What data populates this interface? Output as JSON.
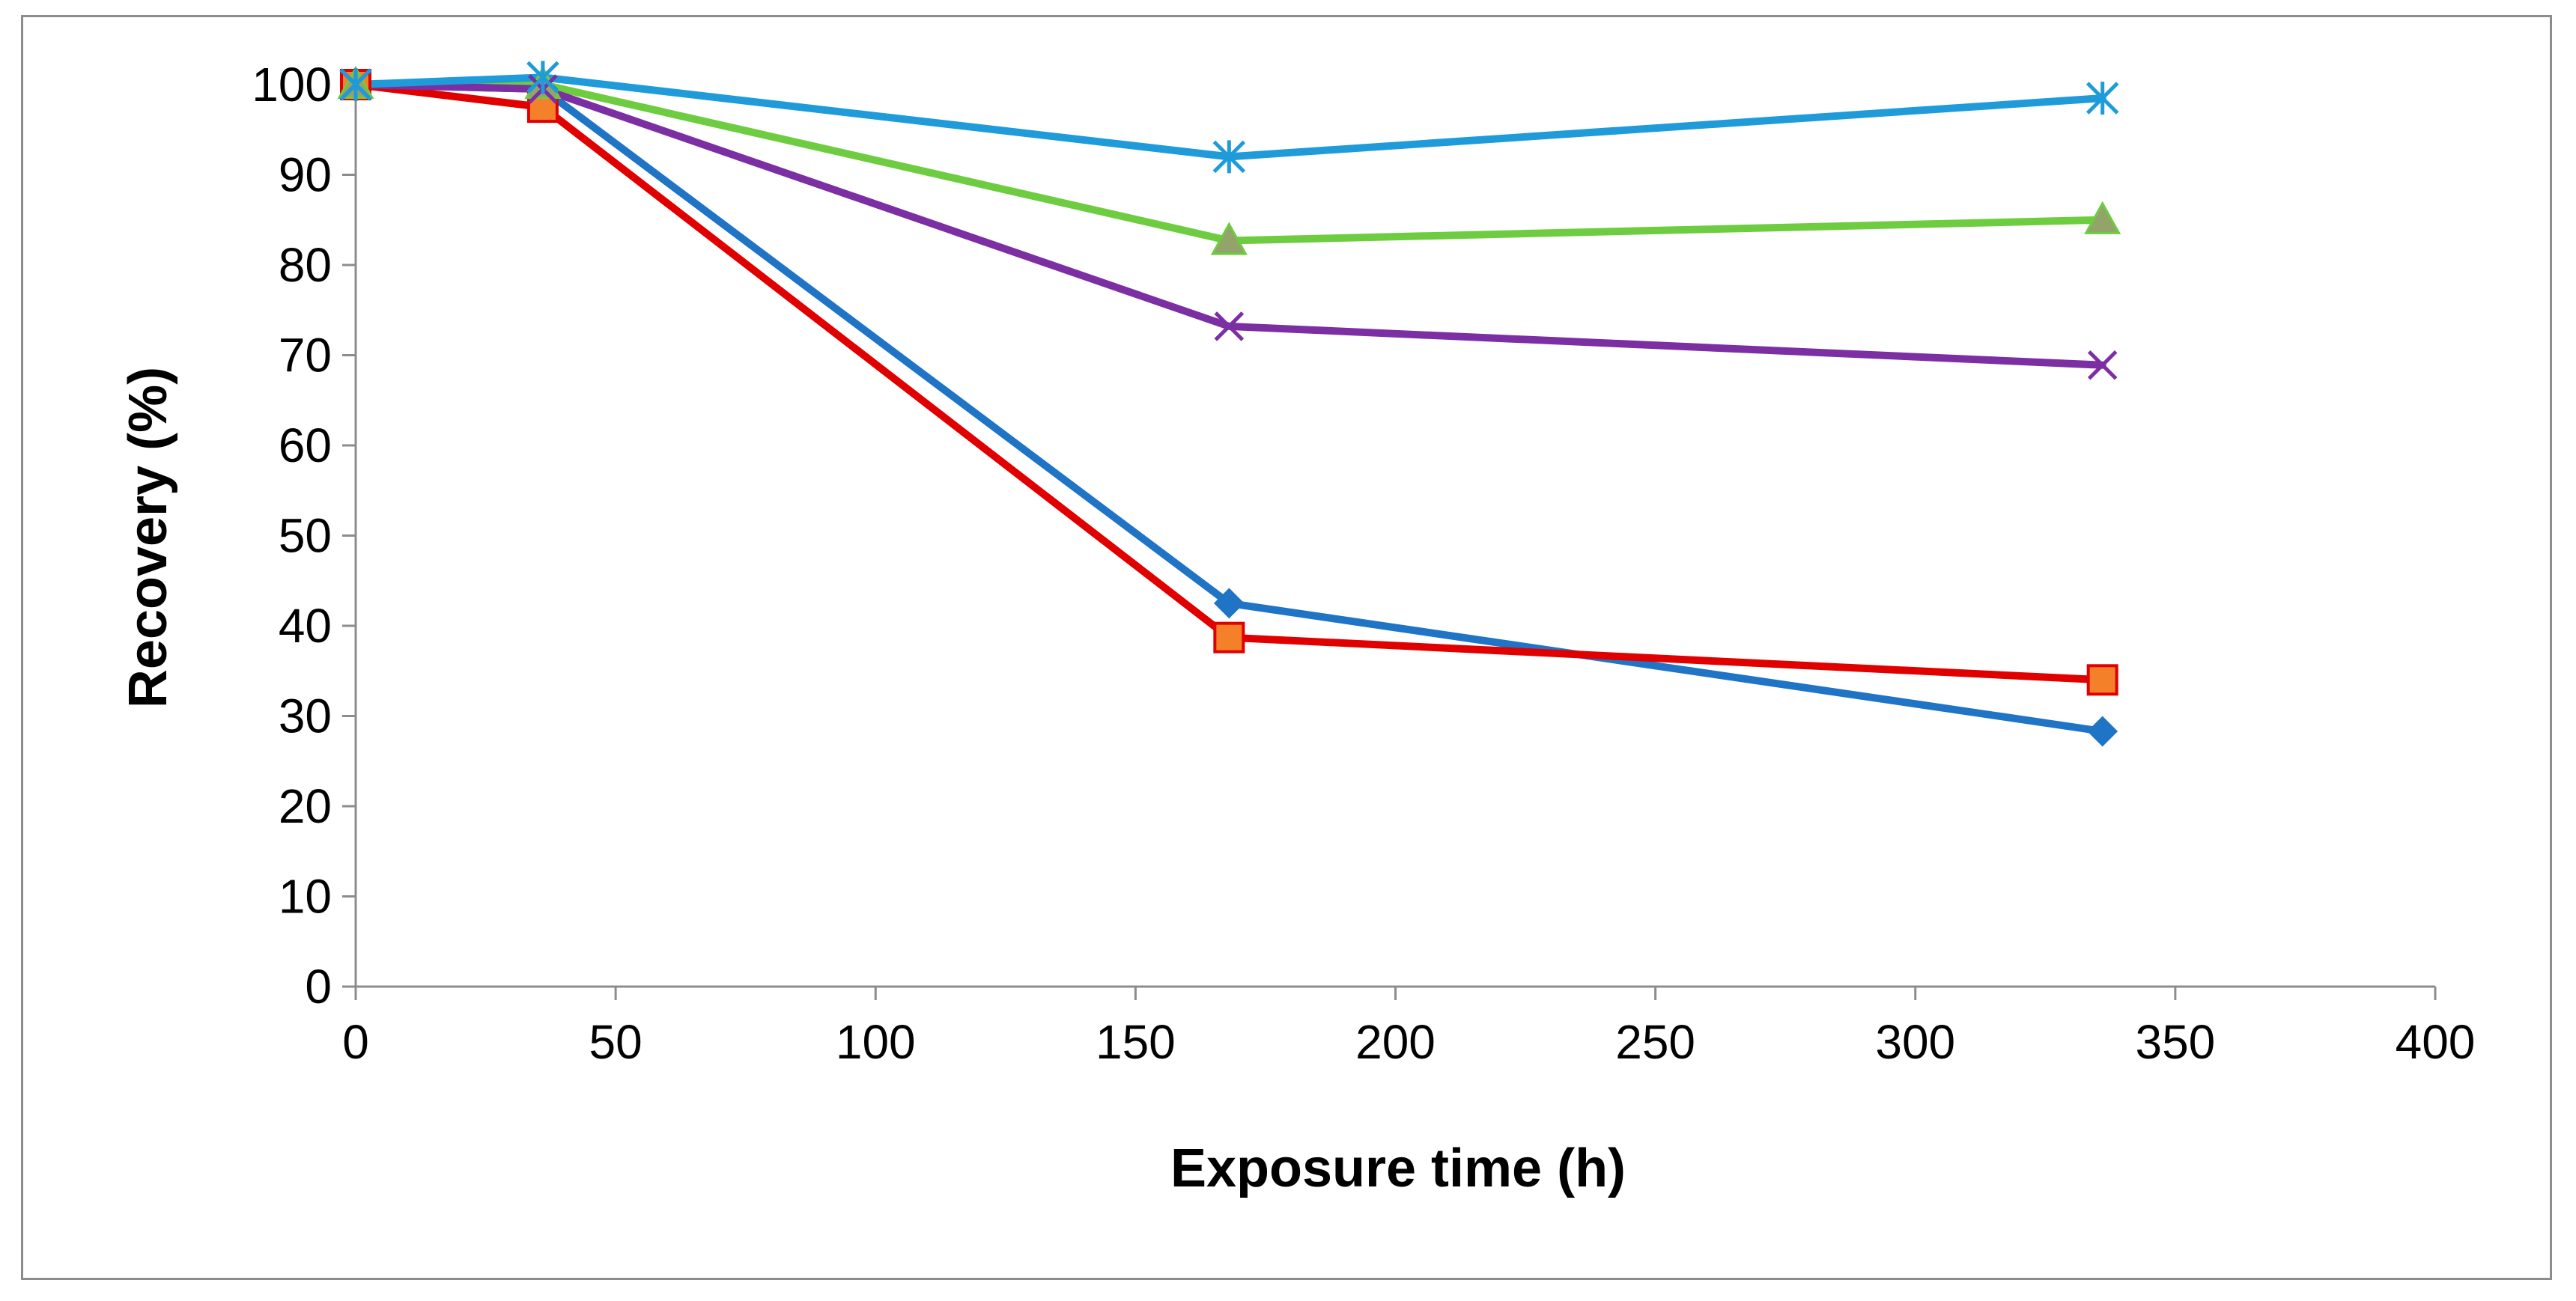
{
  "chart_data": {
    "type": "line",
    "title": "",
    "xlabel": "Exposure time (h)",
    "ylabel": "Recovery (%)",
    "xlim": [
      0,
      400
    ],
    "ylim": [
      0,
      100
    ],
    "xticks": [
      0,
      50,
      100,
      150,
      200,
      250,
      300,
      350,
      400
    ],
    "yticks": [
      0,
      10,
      20,
      30,
      40,
      50,
      60,
      70,
      80,
      90,
      100
    ],
    "grid": false,
    "legend": "none",
    "series": [
      {
        "name": "series-diamond",
        "color": "#1f74c6",
        "marker": "diamond",
        "x": [
          0,
          36,
          168,
          336
        ],
        "y": [
          100,
          99.5,
          42.5,
          28.3
        ]
      },
      {
        "name": "series-square",
        "color": "#e00000",
        "marker_fill": "#f4802a",
        "marker": "square",
        "x": [
          0,
          36,
          168,
          336
        ],
        "y": [
          100,
          97.5,
          38.7,
          34
        ]
      },
      {
        "name": "series-triangle",
        "color": "#6dcc3f",
        "marker_fill": "#92a46a",
        "marker": "triangle",
        "x": [
          0,
          36,
          168,
          336
        ],
        "y": [
          100,
          100,
          82.7,
          85
        ]
      },
      {
        "name": "series-x",
        "color": "#7b2fa3",
        "marker": "x",
        "x": [
          0,
          36,
          168,
          336
        ],
        "y": [
          100,
          99.5,
          73.2,
          68.9
        ]
      },
      {
        "name": "series-star",
        "color": "#1f9bd9",
        "marker": "star",
        "x": [
          0,
          36,
          168,
          336
        ],
        "y": [
          100,
          100.8,
          92,
          98.5
        ]
      }
    ]
  }
}
